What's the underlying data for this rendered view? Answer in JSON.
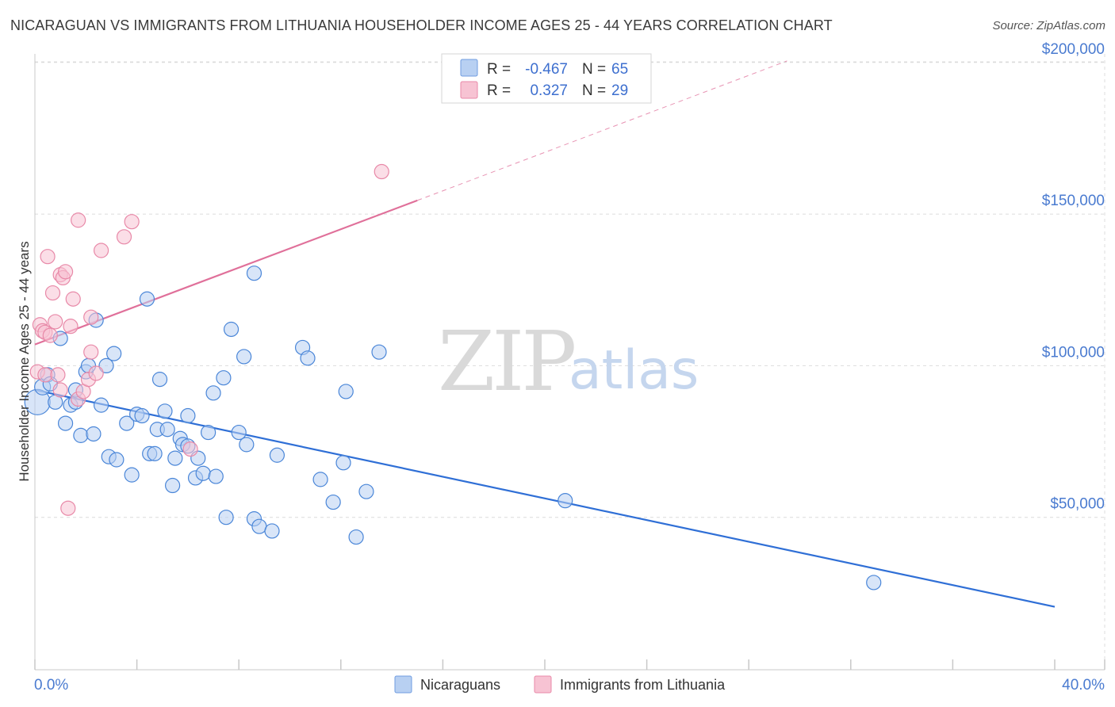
{
  "title": "NICARAGUAN VS IMMIGRANTS FROM LITHUANIA HOUSEHOLDER INCOME AGES 25 - 44 YEARS CORRELATION CHART",
  "source": "Source: ZipAtlas.com",
  "watermark": {
    "zip": "ZIP",
    "atlas": "atlas"
  },
  "colors": {
    "blue": "#4a86d8",
    "blue_fill": "#b8d0f2",
    "blue_line": "#2f6fd6",
    "pink": "#e889a8",
    "pink_fill": "#f7c3d3",
    "pink_line": "#e0709a",
    "label_blue": "#4a7bd0"
  },
  "legend": {
    "rows": [
      {
        "r_label": "R =",
        "r_value": "-0.467",
        "n_label": "N =",
        "n_value": "65"
      },
      {
        "r_label": "R =",
        "r_value": "0.327",
        "n_label": "N =",
        "n_value": "29"
      }
    ]
  },
  "bottom_legend": {
    "series1": "Nicaraguans",
    "series2": "Immigrants from Lithuania"
  },
  "chart_data": {
    "type": "scatter",
    "title": "NICARAGUAN VS IMMIGRANTS FROM LITHUANIA HOUSEHOLDER INCOME AGES 25 - 44 YEARS CORRELATION CHART",
    "xlabel": "",
    "ylabel": "Householder Income Ages 25 - 44 years",
    "xlim": [
      0,
      40
    ],
    "ylim": [
      0,
      205000
    ],
    "x_tick_labels": {
      "min": "0.0%",
      "max": "40.0%"
    },
    "y_ticks": [
      50000,
      100000,
      150000,
      200000
    ],
    "y_tick_labels": [
      "$50,000",
      "$100,000",
      "$150,000",
      "$200,000"
    ],
    "grid": true,
    "legend_position": "top-center",
    "series": [
      {
        "name": "Nicaraguans",
        "r": -0.467,
        "n": 65,
        "trend": {
          "x": [
            0,
            40
          ],
          "y": [
            92000,
            20500
          ]
        },
        "points": [
          [
            0.1,
            88000,
            16
          ],
          [
            0.3,
            93000,
            10
          ],
          [
            0.5,
            97000,
            9
          ],
          [
            0.6,
            94000,
            9
          ],
          [
            0.8,
            88000,
            9
          ],
          [
            1.0,
            109000,
            9
          ],
          [
            1.2,
            81000,
            9
          ],
          [
            1.4,
            87000,
            9
          ],
          [
            1.6,
            88000,
            9
          ],
          [
            1.6,
            92000,
            9
          ],
          [
            1.8,
            77000,
            9
          ],
          [
            2.0,
            98000,
            9
          ],
          [
            2.1,
            100000,
            9
          ],
          [
            2.3,
            77500,
            9
          ],
          [
            2.4,
            115000,
            9
          ],
          [
            2.6,
            87000,
            9
          ],
          [
            2.8,
            100000,
            9
          ],
          [
            2.9,
            70000,
            9
          ],
          [
            3.1,
            104000,
            9
          ],
          [
            3.2,
            69000,
            9
          ],
          [
            3.6,
            81000,
            9
          ],
          [
            3.8,
            64000,
            9
          ],
          [
            4.0,
            84000,
            9
          ],
          [
            4.2,
            83500,
            9
          ],
          [
            4.4,
            122000,
            9
          ],
          [
            4.5,
            71000,
            9
          ],
          [
            4.7,
            71000,
            9
          ],
          [
            4.8,
            79000,
            9
          ],
          [
            4.9,
            95500,
            9
          ],
          [
            5.1,
            85000,
            9
          ],
          [
            5.2,
            79000,
            9
          ],
          [
            5.4,
            60500,
            9
          ],
          [
            5.5,
            69500,
            9
          ],
          [
            5.7,
            76000,
            9
          ],
          [
            5.8,
            74000,
            9
          ],
          [
            6.0,
            83500,
            9
          ],
          [
            6.0,
            73500,
            9
          ],
          [
            6.3,
            63000,
            9
          ],
          [
            6.4,
            69500,
            9
          ],
          [
            6.6,
            64500,
            9
          ],
          [
            6.8,
            78000,
            9
          ],
          [
            7.0,
            91000,
            9
          ],
          [
            7.1,
            63500,
            9
          ],
          [
            7.4,
            96000,
            9
          ],
          [
            7.5,
            50000,
            9
          ],
          [
            7.7,
            112000,
            9
          ],
          [
            8.0,
            78000,
            9
          ],
          [
            8.2,
            103000,
            9
          ],
          [
            8.3,
            74000,
            9
          ],
          [
            8.6,
            130500,
            9
          ],
          [
            8.6,
            49500,
            9
          ],
          [
            8.8,
            47000,
            9
          ],
          [
            9.3,
            45500,
            9
          ],
          [
            9.5,
            70500,
            9
          ],
          [
            10.5,
            106000,
            9
          ],
          [
            10.7,
            102500,
            9
          ],
          [
            11.2,
            62500,
            9
          ],
          [
            11.7,
            55000,
            9
          ],
          [
            12.1,
            68000,
            9
          ],
          [
            12.2,
            91500,
            9
          ],
          [
            12.6,
            43500,
            9
          ],
          [
            13.0,
            58500,
            9
          ],
          [
            13.5,
            104500,
            9
          ],
          [
            20.8,
            55500,
            9
          ],
          [
            32.9,
            28500,
            9
          ]
        ]
      },
      {
        "name": "Immigrants from Lithuania",
        "r": 0.327,
        "n": 29,
        "trend": {
          "x": [
            0,
            15
          ],
          "y": [
            107000,
            154500
          ]
        },
        "trend_dashed": {
          "x": [
            15,
            29.5
          ],
          "y": [
            154500,
            200500
          ]
        },
        "points": [
          [
            0.1,
            98000,
            9
          ],
          [
            0.2,
            113500,
            9
          ],
          [
            0.3,
            111500,
            9
          ],
          [
            0.4,
            111000,
            9
          ],
          [
            0.4,
            97000,
            9
          ],
          [
            0.5,
            136000,
            9
          ],
          [
            0.6,
            110000,
            9
          ],
          [
            0.7,
            124000,
            9
          ],
          [
            0.8,
            114500,
            9
          ],
          [
            0.9,
            97000,
            9
          ],
          [
            1.0,
            92000,
            9
          ],
          [
            1.0,
            130000,
            9
          ],
          [
            1.1,
            129000,
            9
          ],
          [
            1.2,
            131000,
            9
          ],
          [
            1.3,
            53000,
            9
          ],
          [
            1.4,
            113000,
            9
          ],
          [
            1.5,
            122000,
            9
          ],
          [
            1.7,
            148000,
            9
          ],
          [
            1.7,
            89000,
            9
          ],
          [
            1.9,
            91500,
            9
          ],
          [
            2.1,
            95500,
            9
          ],
          [
            2.2,
            116000,
            9
          ],
          [
            2.2,
            104500,
            9
          ],
          [
            2.4,
            97500,
            9
          ],
          [
            2.6,
            138000,
            9
          ],
          [
            3.5,
            142500,
            9
          ],
          [
            3.8,
            147500,
            9
          ],
          [
            6.1,
            72500,
            9
          ],
          [
            13.6,
            164000,
            9
          ]
        ]
      }
    ]
  }
}
